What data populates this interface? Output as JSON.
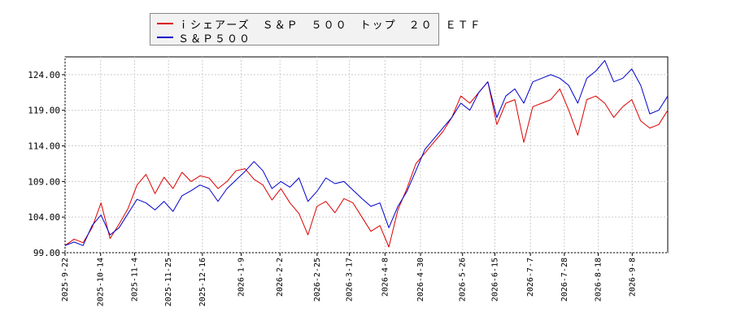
{
  "chart_data": {
    "type": "line",
    "title": "",
    "xlabel": "",
    "ylabel": "",
    "ylim": [
      99.0,
      126.5
    ],
    "yticks": [
      "99.00",
      "104.00",
      "109.00",
      "114.00",
      "119.00",
      "124.00"
    ],
    "xticks": [
      "2025-9-22",
      "2025-10-14",
      "2025-11-4",
      "2025-11-25",
      "2025-12-16",
      "2026-1-9",
      "2026-2-2",
      "2026-2-25",
      "2026-3-17",
      "2026-4-8",
      "2026-4-30",
      "2026-5-26",
      "2026-6-15",
      "2026-7-7",
      "2026-7-28",
      "2026-8-18",
      "2026-9-8"
    ],
    "x_start": "2025-9-22",
    "x_end": "2026-9-30",
    "grid": true,
    "legend_position": "top-left",
    "series": [
      {
        "name": "ｉシェアーズ　Ｓ＆Ｐ　５００　トップ　２０　ＥＴＦ",
        "color": "#dd0000",
        "values": [
          100.0,
          100.9,
          100.4,
          102.5,
          106.0,
          101.0,
          103.0,
          105.2,
          108.5,
          110.0,
          107.3,
          109.6,
          108.0,
          110.3,
          109.0,
          109.8,
          109.5,
          108.0,
          109.0,
          110.5,
          110.8,
          109.3,
          108.5,
          106.4,
          108.0,
          106.0,
          104.5,
          101.5,
          105.5,
          106.2,
          104.6,
          106.6,
          106.0,
          104.0,
          102.0,
          102.8,
          99.8,
          105.0,
          108.0,
          111.5,
          113.0,
          114.5,
          116.0,
          118.0,
          121.0,
          120.0,
          121.5,
          123.0,
          117.0,
          120.0,
          120.5,
          114.5,
          119.5,
          120.0,
          120.5,
          122.0,
          119.0,
          115.5,
          120.5,
          121.0,
          120.0,
          118.0,
          119.5,
          120.5,
          117.5,
          116.5,
          117.0,
          119.0
        ]
      },
      {
        "name": "Ｓ＆Ｐ５００",
        "color": "#0000cc",
        "values": [
          100.0,
          100.5,
          100.0,
          102.8,
          104.3,
          101.5,
          102.5,
          104.5,
          106.5,
          106.0,
          105.0,
          106.2,
          104.8,
          107.0,
          107.7,
          108.5,
          108.0,
          106.2,
          108.0,
          109.2,
          110.4,
          111.8,
          110.5,
          108.0,
          109.0,
          108.2,
          109.5,
          106.2,
          107.6,
          109.5,
          108.7,
          109.0,
          107.8,
          106.6,
          105.5,
          106.0,
          102.5,
          105.5,
          107.6,
          110.5,
          113.5,
          115.0,
          116.5,
          118.0,
          120.0,
          119.0,
          121.5,
          123.0,
          118.0,
          121.0,
          122.0,
          120.0,
          123.0,
          123.5,
          124.0,
          123.5,
          122.5,
          120.0,
          123.5,
          124.5,
          126.0,
          123.0,
          123.5,
          124.8,
          122.5,
          118.5,
          119.0,
          121.0
        ]
      }
    ]
  }
}
